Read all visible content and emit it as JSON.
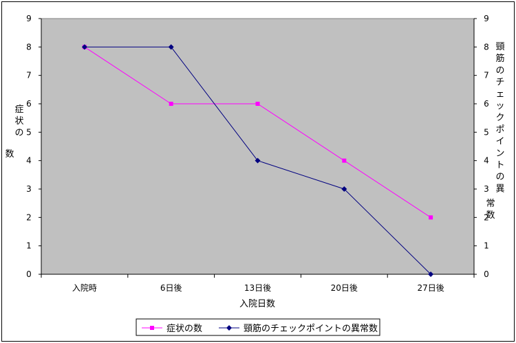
{
  "chart_data": {
    "type": "line",
    "categories": [
      "入院時",
      "6日後",
      "13日後",
      "20日後",
      "27日後"
    ],
    "xlabel": "入院日数",
    "ylabel_left": "症状の数",
    "ylabel_right": "頸筋のチェックポイントの異常数",
    "ylim": [
      0,
      9
    ],
    "yticks": [
      "0",
      "1",
      "2",
      "3",
      "4",
      "5",
      "6",
      "7",
      "8",
      "9"
    ],
    "grid": false,
    "plot_background": "#c0c0c0",
    "legend_position": "bottom",
    "series": [
      {
        "name": "症状の数",
        "values": [
          8,
          6,
          6,
          4,
          2
        ],
        "color": "#ff00ff",
        "marker": "square",
        "axis": "left"
      },
      {
        "name": "頸筋のチェックポイントの異常数",
        "values": [
          8,
          8,
          4,
          3,
          0
        ],
        "color": "#000080",
        "marker": "diamond",
        "axis": "right"
      }
    ]
  }
}
